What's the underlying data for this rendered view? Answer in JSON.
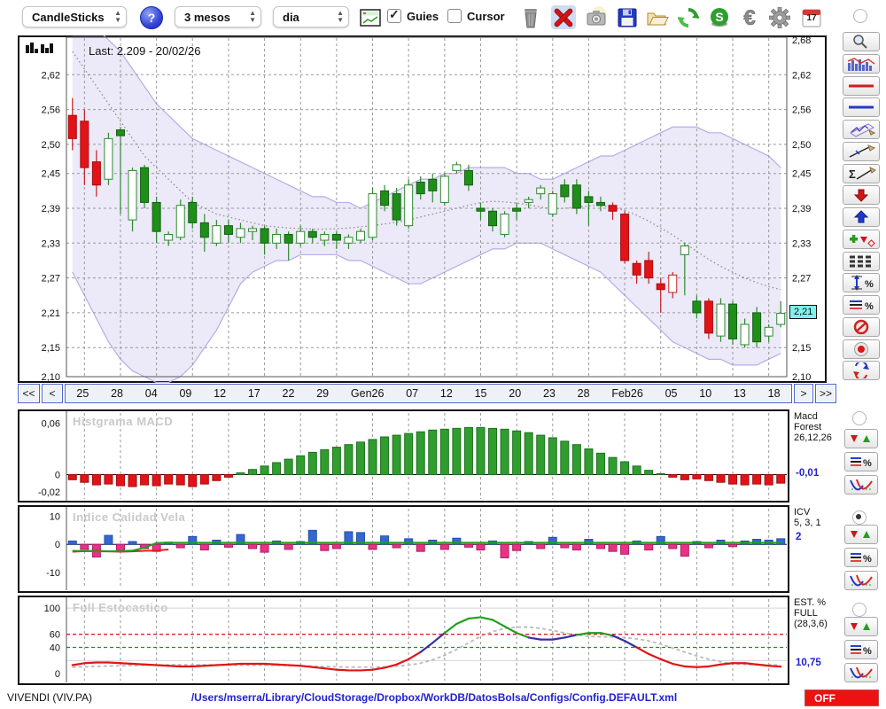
{
  "toolbar": {
    "chart_type_value": "CandleSticks",
    "help_label": "?",
    "period_value": "3 mesos",
    "interval_value": "dia",
    "guies_label": "Guies",
    "cursor_label": "Cursor",
    "calendar_day": "17",
    "icons": [
      "chart-settings",
      "trash",
      "delete-x",
      "camera",
      "save",
      "open-folder",
      "refresh",
      "sync-globe",
      "euro",
      "settings-gear",
      "calendar"
    ]
  },
  "main_chart": {
    "last_label": "Last: 2.209 - 20/02/26",
    "price_tag": "2,21"
  },
  "nav": {
    "first": "<<",
    "prev": "<",
    "next": ">",
    "last": ">>",
    "dates": [
      "25",
      "28",
      "04",
      "09",
      "12",
      "17",
      "22",
      "29",
      "Gen26",
      "07",
      "12",
      "15",
      "20",
      "23",
      "28",
      "Feb26",
      "05",
      "10",
      "13",
      "18"
    ]
  },
  "panels": {
    "macd": {
      "watermark": "Histgrama MACD",
      "label1": "Macd",
      "label2": "Forest",
      "label3": "26,12,26",
      "current": "-0,01"
    },
    "icv": {
      "watermark": "Indice Calidad Vela",
      "label1": "ICV",
      "label2": "5, 3, 1",
      "current": "2"
    },
    "stoch": {
      "watermark": "Full Estocastico",
      "label1": "EST. %",
      "label2": "FULL",
      "label3": "(28,3,6)",
      "current": "10,75"
    }
  },
  "sidebar": {
    "tools": [
      "zoom",
      "indicator-chart",
      "red-hline",
      "blue-hline",
      "zigzag-channel",
      "trendline",
      "sum-trendline",
      "arrow-down",
      "arrow-up",
      "add-signal",
      "levels",
      "measure-percent",
      "percent-levels",
      "forbidden",
      "record",
      "sync"
    ]
  },
  "indicator_controls": [
    {
      "selected": false
    },
    {
      "selected": true
    },
    {
      "selected": false
    }
  ],
  "status": {
    "symbol": "VIVENDI (VIV.PA)",
    "path": "/Users/mserra/Library/CloudStorage/Dropbox/WorkDB/DatosBolsa/Configs/Config.DEFAULT.xml",
    "off": "OFF"
  },
  "chart_data": [
    {
      "type": "candlestick",
      "panel": "price",
      "ylim": [
        2.1,
        2.68
      ],
      "y_tick_values_left": [
        2.62,
        2.56,
        2.5,
        2.45,
        2.39,
        2.33,
        2.27,
        2.21,
        2.15,
        2.1
      ],
      "y_tick_labels_left": [
        "2,62",
        "2,56",
        "2,50",
        "2,45",
        "2,39",
        "2,33",
        "2,27",
        "2,21",
        "2,15",
        "2,10"
      ],
      "y_tick_values_right": [
        2.68,
        2.62,
        2.56,
        2.5,
        2.45,
        2.39,
        2.33,
        2.27,
        2.21,
        2.15,
        2.1
      ],
      "y_tick_labels_right": [
        "2,68",
        "2,62",
        "2,56",
        "2,50",
        "2,45",
        "2,39",
        "2,33",
        "2,27",
        "2,21",
        "2,15",
        "2,10"
      ],
      "tag_value": 2.21,
      "x_ticks": [
        "25",
        "28",
        "04",
        "09",
        "12",
        "17",
        "22",
        "29",
        "Gen26",
        "07",
        "12",
        "15",
        "20",
        "23",
        "28",
        "Feb26",
        "05",
        "10",
        "13",
        "18"
      ],
      "candles": [
        [
          2.55,
          2.58,
          2.49,
          2.51,
          "r"
        ],
        [
          2.54,
          2.56,
          2.43,
          2.46,
          "r"
        ],
        [
          2.47,
          2.49,
          2.41,
          2.43,
          "r"
        ],
        [
          2.44,
          2.52,
          2.43,
          2.51,
          "w"
        ],
        [
          2.525,
          2.53,
          2.38,
          2.515,
          "g"
        ],
        [
          2.37,
          2.46,
          2.35,
          2.455,
          "w"
        ],
        [
          2.46,
          2.465,
          2.39,
          2.4,
          "g"
        ],
        [
          2.4,
          2.41,
          2.33,
          2.35,
          "g"
        ],
        [
          2.335,
          2.35,
          2.325,
          2.345,
          "w"
        ],
        [
          2.34,
          2.405,
          2.335,
          2.395,
          "w"
        ],
        [
          2.4,
          2.41,
          2.355,
          2.365,
          "g"
        ],
        [
          2.365,
          2.38,
          2.315,
          2.34,
          "g"
        ],
        [
          2.33,
          2.37,
          2.325,
          2.36,
          "w"
        ],
        [
          2.36,
          2.37,
          2.33,
          2.345,
          "g"
        ],
        [
          2.34,
          2.365,
          2.33,
          2.355,
          "w"
        ],
        [
          2.35,
          2.36,
          2.335,
          2.355,
          "w"
        ],
        [
          2.355,
          2.36,
          2.31,
          2.33,
          "g"
        ],
        [
          2.33,
          2.355,
          2.32,
          2.345,
          "w"
        ],
        [
          2.345,
          2.35,
          2.3,
          2.33,
          "g"
        ],
        [
          2.33,
          2.36,
          2.325,
          2.35,
          "w"
        ],
        [
          2.35,
          2.355,
          2.33,
          2.34,
          "g"
        ],
        [
          2.335,
          2.35,
          2.325,
          2.345,
          "w"
        ],
        [
          2.345,
          2.35,
          2.32,
          2.335,
          "g"
        ],
        [
          2.33,
          2.345,
          2.32,
          2.34,
          "w"
        ],
        [
          2.335,
          2.355,
          2.33,
          2.35,
          "w"
        ],
        [
          2.34,
          2.425,
          2.335,
          2.415,
          "w"
        ],
        [
          2.42,
          2.43,
          2.385,
          2.395,
          "g"
        ],
        [
          2.415,
          2.425,
          2.36,
          2.37,
          "g"
        ],
        [
          2.36,
          2.44,
          2.355,
          2.43,
          "w"
        ],
        [
          2.435,
          2.445,
          2.405,
          2.415,
          "g"
        ],
        [
          2.42,
          2.45,
          2.4,
          2.44,
          "g"
        ],
        [
          2.4,
          2.45,
          2.395,
          2.445,
          "w"
        ],
        [
          2.455,
          2.47,
          2.45,
          2.465,
          "w"
        ],
        [
          2.43,
          2.465,
          2.42,
          2.455,
          "g"
        ],
        [
          2.39,
          2.4,
          2.37,
          2.385,
          "g"
        ],
        [
          2.385,
          2.39,
          2.35,
          2.36,
          "g"
        ],
        [
          2.345,
          2.385,
          2.34,
          2.38,
          "w"
        ],
        [
          2.39,
          2.4,
          2.37,
          2.385,
          "g"
        ],
        [
          2.4,
          2.41,
          2.39,
          2.405,
          "w"
        ],
        [
          2.415,
          2.43,
          2.405,
          2.425,
          "w"
        ],
        [
          2.38,
          2.42,
          2.375,
          2.415,
          "w"
        ],
        [
          2.41,
          2.44,
          2.4,
          2.43,
          "g"
        ],
        [
          2.43,
          2.44,
          2.38,
          2.39,
          "g"
        ],
        [
          2.4,
          2.42,
          2.36,
          2.41,
          "g"
        ],
        [
          2.4,
          2.41,
          2.385,
          2.395,
          "g"
        ],
        [
          2.395,
          2.4,
          2.37,
          2.385,
          "r"
        ],
        [
          2.38,
          2.385,
          2.295,
          2.3,
          "r"
        ],
        [
          2.295,
          2.3,
          2.26,
          2.275,
          "r"
        ],
        [
          2.3,
          2.315,
          2.26,
          2.27,
          "r"
        ],
        [
          2.26,
          2.27,
          2.21,
          2.25,
          "r"
        ],
        [
          2.245,
          2.28,
          2.235,
          2.275,
          "wr"
        ],
        [
          2.31,
          2.33,
          2.24,
          2.325,
          "w"
        ],
        [
          2.23,
          2.24,
          2.2,
          2.21,
          "g"
        ],
        [
          2.23,
          2.235,
          2.165,
          2.175,
          "r"
        ],
        [
          2.17,
          2.235,
          2.16,
          2.225,
          "w"
        ],
        [
          2.225,
          2.23,
          2.155,
          2.165,
          "g"
        ],
        [
          2.155,
          2.2,
          2.15,
          2.19,
          "w"
        ],
        [
          2.21,
          2.22,
          2.15,
          2.16,
          "g"
        ],
        [
          2.17,
          2.19,
          2.16,
          2.185,
          "w"
        ],
        [
          2.19,
          2.23,
          2.185,
          2.209,
          "w"
        ]
      ],
      "bollinger_upper": [
        2.74,
        2.72,
        2.7,
        2.68,
        2.66,
        2.63,
        2.6,
        2.57,
        2.55,
        2.53,
        2.51,
        2.5,
        2.49,
        2.48,
        2.47,
        2.46,
        2.45,
        2.44,
        2.43,
        2.42,
        2.41,
        2.41,
        2.4,
        2.4,
        2.39,
        2.4,
        2.41,
        2.42,
        2.43,
        2.44,
        2.44,
        2.45,
        2.45,
        2.46,
        2.46,
        2.46,
        2.46,
        2.45,
        2.45,
        2.44,
        2.44,
        2.45,
        2.46,
        2.47,
        2.48,
        2.48,
        2.49,
        2.5,
        2.51,
        2.52,
        2.53,
        2.53,
        2.53,
        2.52,
        2.52,
        2.51,
        2.5,
        2.49,
        2.48,
        2.46
      ],
      "bollinger_lower": [
        2.28,
        2.24,
        2.2,
        2.16,
        2.13,
        2.11,
        2.1,
        2.09,
        2.09,
        2.1,
        2.12,
        2.15,
        2.18,
        2.22,
        2.26,
        2.28,
        2.29,
        2.3,
        2.3,
        2.31,
        2.31,
        2.31,
        2.31,
        2.3,
        2.3,
        2.29,
        2.28,
        2.27,
        2.26,
        2.26,
        2.27,
        2.28,
        2.29,
        2.3,
        2.31,
        2.32,
        2.32,
        2.33,
        2.33,
        2.33,
        2.32,
        2.31,
        2.3,
        2.29,
        2.28,
        2.26,
        2.24,
        2.22,
        2.2,
        2.18,
        2.16,
        2.15,
        2.14,
        2.13,
        2.13,
        2.12,
        2.12,
        2.12,
        2.13,
        2.14
      ],
      "ma_dotted": [
        2.66,
        2.63,
        2.6,
        2.57,
        2.54,
        2.51,
        2.48,
        2.46,
        2.44,
        2.42,
        2.4,
        2.39,
        2.38,
        2.375,
        2.37,
        2.365,
        2.36,
        2.358,
        2.356,
        2.355,
        2.354,
        2.354,
        2.355,
        2.356,
        2.358,
        2.36,
        2.363,
        2.366,
        2.37,
        2.375,
        2.38,
        2.385,
        2.39,
        2.395,
        2.4,
        2.402,
        2.401,
        2.399,
        2.396,
        2.392,
        2.389,
        2.39,
        2.392,
        2.394,
        2.395,
        2.392,
        2.386,
        2.378,
        2.368,
        2.356,
        2.344,
        2.33,
        2.316,
        2.302,
        2.29,
        2.28,
        2.27,
        2.262,
        2.255,
        2.25
      ]
    },
    {
      "type": "bar",
      "panel": "macd",
      "ylim": [
        -0.0295,
        0.073
      ],
      "y_tick_values": [
        0.06,
        0,
        -0.02
      ],
      "y_tick_labels": [
        "0,06",
        "0",
        "-0,02"
      ],
      "values": [
        -0.006,
        -0.009,
        -0.012,
        -0.011,
        -0.013,
        -0.014,
        -0.012,
        -0.013,
        -0.011,
        -0.012,
        -0.014,
        -0.011,
        -0.007,
        -0.003,
        0.002,
        0.006,
        0.01,
        0.014,
        0.018,
        0.022,
        0.026,
        0.029,
        0.032,
        0.035,
        0.038,
        0.041,
        0.044,
        0.046,
        0.048,
        0.05,
        0.052,
        0.053,
        0.054,
        0.055,
        0.055,
        0.054,
        0.053,
        0.051,
        0.049,
        0.046,
        0.043,
        0.039,
        0.035,
        0.03,
        0.025,
        0.02,
        0.015,
        0.01,
        0.005,
        0.001,
        -0.003,
        -0.006,
        -0.005,
        -0.007,
        -0.009,
        -0.011,
        -0.012,
        -0.011,
        -0.012,
        -0.01
      ]
    },
    {
      "type": "bar",
      "panel": "icv",
      "ylim": [
        -16,
        13
      ],
      "y_tick_values": [
        10,
        0,
        -10
      ],
      "y_tick_labels": [
        "10",
        "0",
        "-10"
      ],
      "values": [
        1.2,
        -1.8,
        -4.5,
        3.2,
        -2.2,
        1.0,
        -1.5,
        -2.5,
        0.8,
        -1.2,
        2.8,
        -2.0,
        1.5,
        -1.0,
        3.5,
        -1.5,
        -2.8,
        1.2,
        -1.8,
        1.0,
        5.0,
        -2.2,
        -1.5,
        4.5,
        4.2,
        -1.8,
        3.0,
        -1.2,
        2.0,
        -2.5,
        1.5,
        -1.8,
        2.2,
        -1.0,
        -2.0,
        1.2,
        -4.8,
        -2.2,
        1.0,
        -1.5,
        2.5,
        -1.2,
        -2.0,
        1.8,
        -1.5,
        -2.5,
        -3.5,
        1.2,
        -2.0,
        2.8,
        -1.5,
        -4.2,
        1.0,
        -1.2,
        1.5,
        -0.8,
        1.2,
        1.8,
        1.5,
        2.0
      ],
      "green_line": [
        -2.3,
        -2.4,
        -2.5,
        -2.5,
        -2.4,
        -2.2,
        -1.2,
        0.5,
        0.6,
        0.6,
        0.6,
        0.6,
        0.6,
        0.6,
        0.6,
        0.6,
        0.6,
        0.6,
        0.6,
        0.6,
        0.6,
        0.6,
        0.6,
        0.6,
        0.6,
        0.6,
        0.6,
        0.6,
        0.6,
        0.6,
        0.6,
        0.6,
        0.6,
        0.6,
        0.6,
        0.6,
        0.6,
        0.6,
        0.6,
        0.6,
        0.6,
        0.6,
        0.6,
        0.6,
        0.6,
        0.6,
        0.6,
        0.6,
        0.6,
        0.6,
        0.6,
        0.6,
        0.6,
        0.6,
        0.6,
        0.6,
        0.6,
        0.6,
        0.6,
        0.6
      ],
      "red_line": [
        -2.6,
        -2.4,
        -2.3,
        -2.5,
        -2.6,
        -2.5,
        -2.3,
        -2.2,
        -1.8
      ]
    },
    {
      "type": "line",
      "panel": "stochastic",
      "ylim": [
        0,
        100
      ],
      "y_tick_values": [
        100,
        60,
        40,
        0
      ],
      "y_tick_labels": [
        "100",
        "60",
        "40",
        "0"
      ],
      "upper_threshold": 60,
      "lower_threshold": 40,
      "k_values": [
        13,
        16,
        17,
        17,
        16,
        15,
        14,
        13,
        12,
        11,
        11,
        12,
        13,
        14,
        15,
        15,
        15,
        14,
        13,
        12,
        10,
        8,
        6,
        5,
        5,
        6,
        9,
        14,
        22,
        33,
        47,
        62,
        76,
        84,
        86,
        82,
        72,
        62,
        55,
        52,
        52,
        55,
        59,
        62,
        62,
        58,
        50,
        40,
        30,
        22,
        15,
        11,
        10,
        11,
        14,
        16,
        16,
        14,
        12,
        10.75
      ],
      "d_values": [
        10,
        10.5,
        11,
        11.5,
        12,
        12.5,
        13,
        13.2,
        13.4,
        13.5,
        13.5,
        13.4,
        13.2,
        13,
        13,
        13,
        13,
        12.8,
        12.5,
        12,
        11.5,
        11,
        10.5,
        10,
        10,
        10,
        10.5,
        11.5,
        13,
        16,
        21,
        28,
        37,
        47,
        57,
        64,
        69,
        71,
        71,
        69,
        66,
        62,
        59,
        57,
        56,
        56,
        55,
        53,
        50,
        45,
        39,
        33,
        27,
        22,
        18,
        15,
        14,
        13.5,
        13.5,
        13
      ]
    }
  ]
}
